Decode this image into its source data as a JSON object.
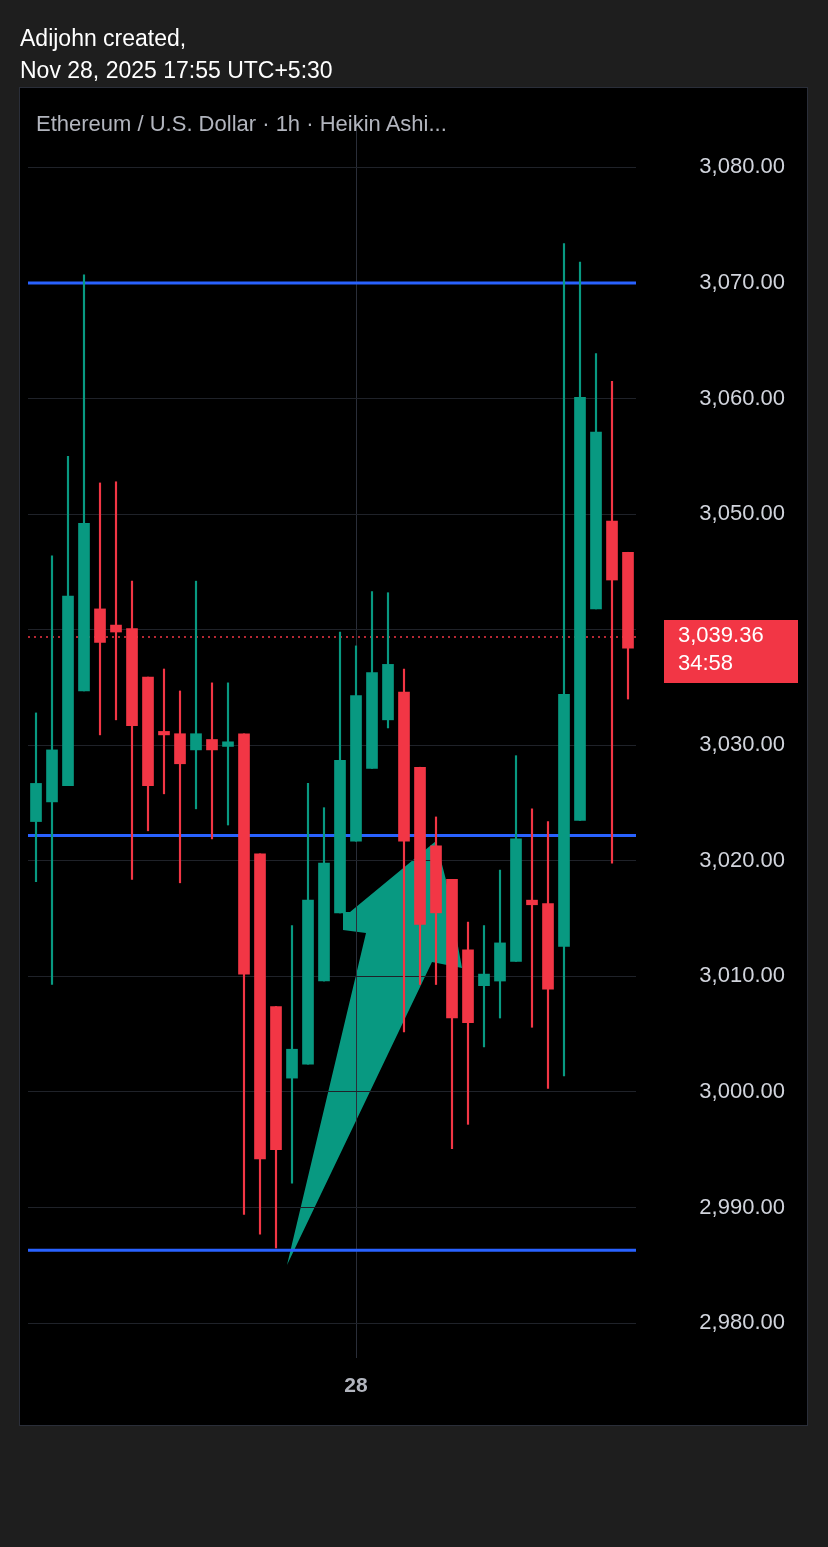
{
  "chart_data": {
    "type": "candlestick",
    "title": "Ethereum / U.S. Dollar · 1h · Heikin Ashi...",
    "subtitle": "Adijohn created,",
    "annotations": [
      "Nov 28, 2025 17:55 UTC+5:30",
      "34:58"
    ],
    "categories": [
      null,
      null,
      null,
      null,
      null,
      null,
      null,
      null,
      null,
      null,
      null,
      null,
      null,
      null,
      null,
      null,
      null,
      null,
      null,
      null,
      "28",
      null,
      null,
      null,
      null,
      null,
      null,
      null,
      null,
      null,
      null,
      null,
      null,
      null,
      null,
      null,
      null,
      null
    ],
    "ohlc": [
      [
        3023.4,
        3032.8,
        3018.2,
        3026.7
      ],
      [
        3025.1,
        3046.4,
        3009.3,
        3029.6
      ],
      [
        3026.5,
        3055.0,
        3026.5,
        3042.9
      ],
      [
        3034.7,
        3070.7,
        3034.7,
        3049.2
      ],
      [
        3041.8,
        3052.7,
        3030.9,
        3038.9
      ],
      [
        3040.4,
        3052.8,
        3032.2,
        3039.8
      ],
      [
        3040.1,
        3044.2,
        3018.4,
        3031.7
      ],
      [
        3035.9,
        3035.9,
        3022.6,
        3026.5
      ],
      [
        3031.2,
        3036.6,
        3025.8,
        3030.9
      ],
      [
        3031.0,
        3034.7,
        3018.1,
        3028.4
      ],
      [
        3029.6,
        3044.2,
        3024.5,
        3031.0
      ],
      [
        3030.5,
        3035.4,
        3021.9,
        3029.6
      ],
      [
        3029.9,
        3035.4,
        3023.1,
        3030.3
      ],
      [
        3031.0,
        3031.0,
        2989.4,
        3010.2
      ],
      [
        3020.6,
        3020.6,
        2987.7,
        2994.2
      ],
      [
        3007.4,
        3007.4,
        2986.5,
        2995.0
      ],
      [
        3001.2,
        3014.4,
        2992.1,
        3003.7
      ],
      [
        3002.4,
        3026.7,
        3002.4,
        3016.6
      ],
      [
        3009.6,
        3024.6,
        3009.6,
        3019.8
      ],
      [
        3015.5,
        3039.8,
        3015.5,
        3028.7
      ],
      [
        3021.7,
        3038.6,
        3021.7,
        3034.3
      ],
      [
        3028.0,
        3043.3,
        3028.0,
        3036.3
      ],
      [
        3032.2,
        3043.2,
        3031.5,
        3037.0
      ],
      [
        3034.6,
        3036.6,
        3005.2,
        3021.7
      ],
      [
        3028.1,
        3028.1,
        3009.3,
        3014.5
      ],
      [
        3021.3,
        3023.8,
        3009.3,
        3015.5
      ],
      [
        3018.4,
        3018.4,
        2995.1,
        3006.4
      ],
      [
        3012.3,
        3014.7,
        2997.2,
        3006.0
      ],
      [
        3009.2,
        3014.4,
        3003.9,
        3010.2
      ],
      [
        3009.6,
        3019.2,
        3006.4,
        3012.9
      ],
      [
        3011.3,
        3029.1,
        3011.3,
        3021.9
      ],
      [
        3016.6,
        3024.5,
        3005.6,
        3016.2
      ],
      [
        3016.3,
        3023.4,
        3000.3,
        3008.9
      ],
      [
        3012.6,
        3073.4,
        3001.4,
        3034.4
      ],
      [
        3023.5,
        3071.8,
        3023.5,
        3060.1
      ],
      [
        3041.8,
        3063.9,
        3041.8,
        3057.1
      ],
      [
        3049.4,
        3061.5,
        3019.8,
        3044.3
      ],
      [
        3046.7,
        3046.7,
        3034.0,
        3038.4
      ]
    ],
    "colors": [
      "#089981",
      "#089981",
      "#089981",
      "#089981",
      "#f23645",
      "#f23645",
      "#f23645",
      "#f23645",
      "#f23645",
      "#f23645",
      "#089981",
      "#f23645",
      "#089981",
      "#f23645",
      "#f23645",
      "#f23645",
      "#089981",
      "#089981",
      "#089981",
      "#089981",
      "#089981",
      "#089981",
      "#089981",
      "#f23645",
      "#f23645",
      "#f23645",
      "#f23645",
      "#f23645",
      "#089981",
      "#089981",
      "#089981",
      "#f23645",
      "#f23645",
      "#089981",
      "#089981",
      "#089981",
      "#f23645",
      "#f23645"
    ],
    "ylim": [
      2977,
      3084
    ],
    "yticks": [
      {
        "value": 2980,
        "label": "2,980.00"
      },
      {
        "value": 2990,
        "label": "2,990.00"
      },
      {
        "value": 3000,
        "label": "3,000.00"
      },
      {
        "value": 3010,
        "label": "3,010.00"
      },
      {
        "value": 3020,
        "label": "3,020.00"
      },
      {
        "value": 3030,
        "label": "3,030.00"
      },
      {
        "value": 3040,
        "label": null
      },
      {
        "value": 3050,
        "label": "3,050.00"
      },
      {
        "value": 3060,
        "label": "3,060.00"
      },
      {
        "value": 3070,
        "label": "3,070.00"
      },
      {
        "value": 3080,
        "label": "3,080.00"
      }
    ],
    "grid": true,
    "ref_lines": [
      {
        "axis": "y",
        "value": 3070,
        "color": "#2962ff"
      },
      {
        "axis": "y",
        "value": 3022.2,
        "color": "#2962ff"
      },
      {
        "axis": "y",
        "value": 2986.3,
        "color": "#2962ff"
      },
      {
        "axis": "y",
        "value": 3039.36,
        "label": "3,039.36",
        "color": "#f23645",
        "line_style": "dotted"
      }
    ]
  }
}
